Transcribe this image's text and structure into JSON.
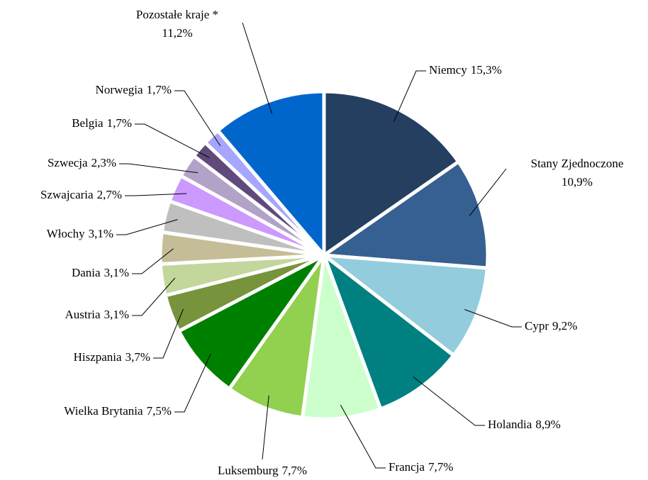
{
  "chart_data": {
    "type": "pie",
    "categories": [
      "Niemcy",
      "Stany Zjednoczone",
      "Cypr",
      "Holandia",
      "Francja",
      "Luksemburg",
      "Wielka Brytania",
      "Hiszpania",
      "Austria",
      "Dania",
      "Włochy",
      "Szwajcaria",
      "Szwecja",
      "Belgia",
      "Norwegia",
      "Pozostałe kraje *"
    ],
    "values": [
      15.3,
      10.9,
      9.2,
      8.9,
      7.7,
      7.7,
      7.5,
      3.7,
      3.1,
      3.1,
      3.1,
      2.7,
      2.3,
      1.7,
      1.7,
      11.2
    ],
    "value_labels": [
      "15,3%",
      "10,9%",
      "9,2%",
      "8,9%",
      "7,7%",
      "7,7%",
      "7,5%",
      "3,7%",
      "3,1%",
      "3,1%",
      "3,1%",
      "2,7%",
      "2,3%",
      "1,7%",
      "1,7%",
      "11,2%"
    ],
    "colors": [
      "#243f60",
      "#366092",
      "#93cddd",
      "#008080",
      "#ccffcc",
      "#92d050",
      "#008000",
      "#77933c",
      "#c3d69b",
      "#c4bd97",
      "#bfbfbf",
      "#cc99ff",
      "#b3a2c7",
      "#604a7b",
      "#a6a6ff",
      "#0066cc"
    ]
  }
}
